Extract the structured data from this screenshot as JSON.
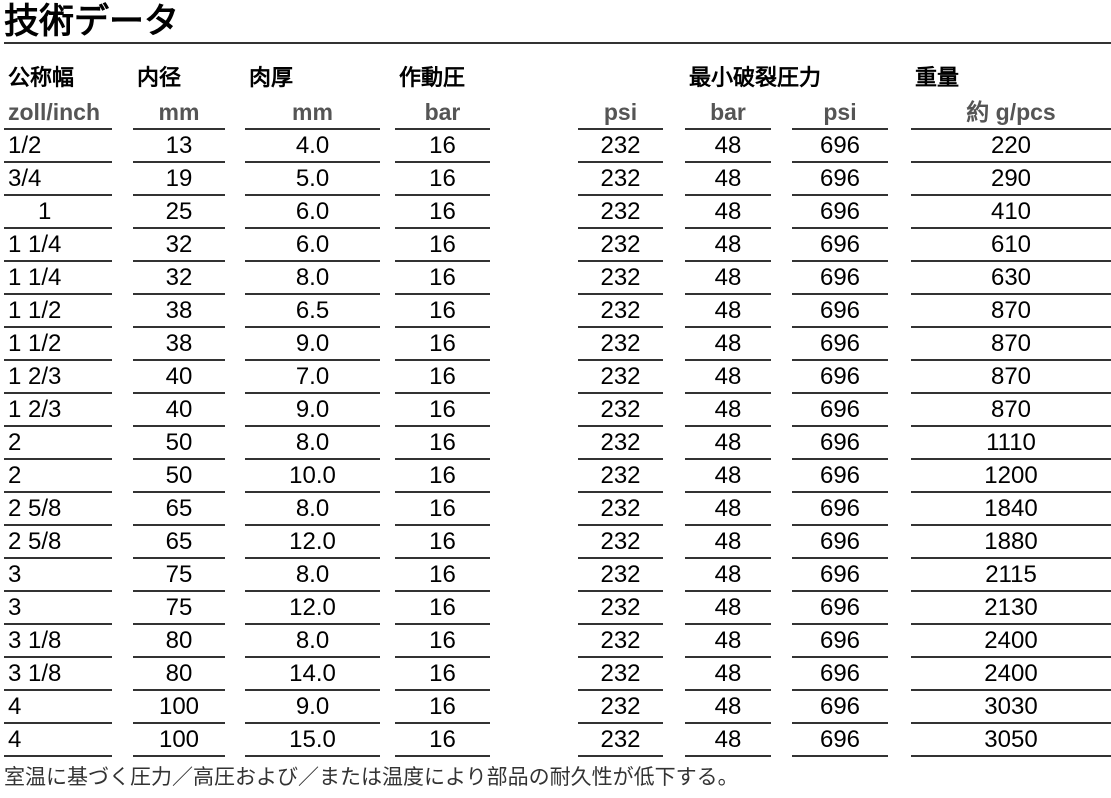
{
  "title": "技術データ",
  "header": {
    "groups": [
      "公称幅",
      "内径",
      "肉厚",
      "作動圧",
      "最小破裂圧力",
      "重量"
    ],
    "units": [
      "zoll/inch",
      "mm",
      "mm",
      "bar",
      "psi",
      "bar",
      "psi",
      "約 g/pcs"
    ]
  },
  "rows": [
    [
      "1/2",
      "13",
      "4.0",
      "16",
      "232",
      "48",
      "696",
      "220"
    ],
    [
      "3/4",
      "19",
      "5.0",
      "16",
      "232",
      "48",
      "696",
      "290"
    ],
    [
      "1",
      "25",
      "6.0",
      "16",
      "232",
      "48",
      "696",
      "410"
    ],
    [
      "1 1/4",
      "32",
      "6.0",
      "16",
      "232",
      "48",
      "696",
      "610"
    ],
    [
      "1 1/4",
      "32",
      "8.0",
      "16",
      "232",
      "48",
      "696",
      "630"
    ],
    [
      "1 1/2",
      "38",
      "6.5",
      "16",
      "232",
      "48",
      "696",
      "870"
    ],
    [
      "1 1/2",
      "38",
      "9.0",
      "16",
      "232",
      "48",
      "696",
      "870"
    ],
    [
      "1 2/3",
      "40",
      "7.0",
      "16",
      "232",
      "48",
      "696",
      "870"
    ],
    [
      "1 2/3",
      "40",
      "9.0",
      "16",
      "232",
      "48",
      "696",
      "870"
    ],
    [
      "2",
      "50",
      "8.0",
      "16",
      "232",
      "48",
      "696",
      "1110"
    ],
    [
      "2",
      "50",
      "10.0",
      "16",
      "232",
      "48",
      "696",
      "1200"
    ],
    [
      "2 5/8",
      "65",
      "8.0",
      "16",
      "232",
      "48",
      "696",
      "1840"
    ],
    [
      "2 5/8",
      "65",
      "12.0",
      "16",
      "232",
      "48",
      "696",
      "1880"
    ],
    [
      "3",
      "75",
      "8.0",
      "16",
      "232",
      "48",
      "696",
      "2115"
    ],
    [
      "3",
      "75",
      "12.0",
      "16",
      "232",
      "48",
      "696",
      "2130"
    ],
    [
      "3 1/8",
      "80",
      "8.0",
      "16",
      "232",
      "48",
      "696",
      "2400"
    ],
    [
      "3 1/8",
      "80",
      "14.0",
      "16",
      "232",
      "48",
      "696",
      "2400"
    ],
    [
      "4",
      "100",
      "9.0",
      "16",
      "232",
      "48",
      "696",
      "3030"
    ],
    [
      "4",
      "100",
      "15.0",
      "16",
      "232",
      "48",
      "696",
      "3050"
    ]
  ],
  "footer": "室温に基づく圧力／高圧および／または温度により部品の耐久性が低下する。"
}
